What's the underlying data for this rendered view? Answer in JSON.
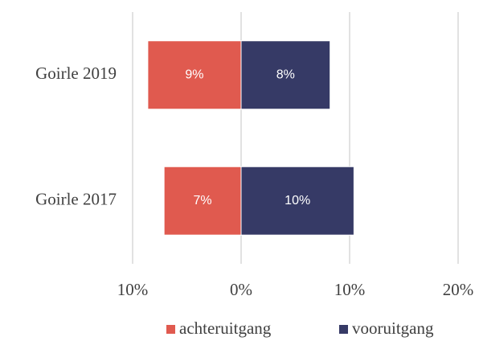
{
  "chart_data": {
    "type": "bar",
    "orientation": "horizontal",
    "categories": [
      "Goirle 2019",
      "Goirle 2017"
    ],
    "series": [
      {
        "name": "achteruitgang",
        "color": "#e05a4f",
        "values": [
          -8.6,
          -7.1
        ],
        "value_labels": [
          "9%",
          "7%"
        ]
      },
      {
        "name": "vooruitgang",
        "color": "#363a66",
        "values": [
          8.2,
          10.4
        ],
        "value_labels": [
          "8%",
          "10%"
        ]
      }
    ],
    "xlim": [
      -10,
      20
    ],
    "xticks": [
      {
        "value": -10,
        "label": "10%"
      },
      {
        "value": 0,
        "label": "0%"
      },
      {
        "value": 10,
        "label": "10%"
      },
      {
        "value": 20,
        "label": "20%"
      }
    ],
    "grid": true,
    "legend": "bottom"
  }
}
